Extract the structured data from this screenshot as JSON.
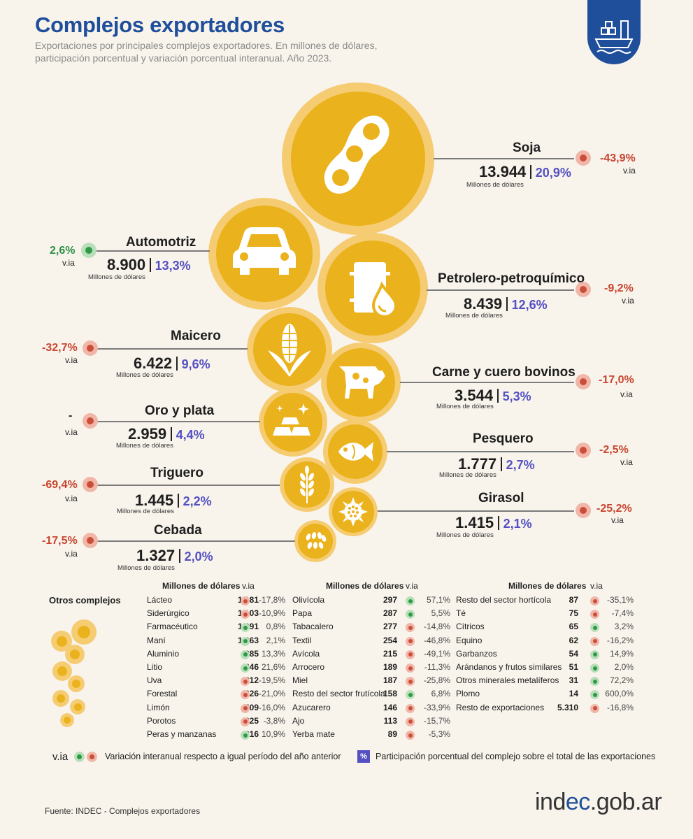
{
  "header": {
    "title": "Complejos exportadores",
    "subtitle": "Exportaciones por principales complejos exportadores. En millones de dólares, participación porcentual y variación porcentual interanual. Año 2023.",
    "badge_icon": "ship-icon"
  },
  "units_label": "Millones de dólares",
  "via_label": "v.ia",
  "main_complexes": [
    {
      "name": "Soja",
      "value": "13.944",
      "pct": "20,9%",
      "via": "-43,9%",
      "trend": "neg",
      "icon": "soybean-icon"
    },
    {
      "name": "Automotriz",
      "value": "8.900",
      "pct": "13,3%",
      "via": "2,6%",
      "trend": "pos",
      "icon": "car-icon"
    },
    {
      "name": "Petrolero-petroquímico",
      "value": "8.439",
      "pct": "12,6%",
      "via": "-9,2%",
      "trend": "neg",
      "icon": "oil-barrel-icon"
    },
    {
      "name": "Maicero",
      "value": "6.422",
      "pct": "9,6%",
      "via": "-32,7%",
      "trend": "neg",
      "icon": "corn-icon"
    },
    {
      "name": "Carne y cuero bovinos",
      "value": "3.544",
      "pct": "5,3%",
      "via": "-17,0%",
      "trend": "neg",
      "icon": "cow-icon"
    },
    {
      "name": "Oro y plata",
      "value": "2.959",
      "pct": "4,4%",
      "via": "-",
      "trend": "neg",
      "icon": "gold-bars-icon"
    },
    {
      "name": "Pesquero",
      "value": "1.777",
      "pct": "2,7%",
      "via": "-2,5%",
      "trend": "neg",
      "icon": "fish-icon"
    },
    {
      "name": "Triguero",
      "value": "1.445",
      "pct": "2,2%",
      "via": "-69,4%",
      "trend": "neg",
      "icon": "wheat-icon"
    },
    {
      "name": "Girasol",
      "value": "1.415",
      "pct": "2,1%",
      "via": "-25,2%",
      "trend": "neg",
      "icon": "sunflower-icon"
    },
    {
      "name": "Cebada",
      "value": "1.327",
      "pct": "2,0%",
      "via": "-17,5%",
      "trend": "neg",
      "icon": "barley-icon"
    }
  ],
  "otros": {
    "label": "Otros complejos",
    "col_header_value": "Millones de dólares",
    "col_header_via": "v.ia",
    "columns": [
      [
        {
          "name": "Lácteo",
          "value": "1.181",
          "via": "-17,8%",
          "trend": "neg"
        },
        {
          "name": "Siderúrgico",
          "value": "1.103",
          "via": "-10,9%",
          "trend": "neg"
        },
        {
          "name": "Farmacéutico",
          "value": "1.091",
          "via": "0,8%",
          "trend": "pos"
        },
        {
          "name": "Maní",
          "value": "1.063",
          "via": "2,1%",
          "trend": "pos"
        },
        {
          "name": "Aluminio",
          "value": "885",
          "via": "13,3%",
          "trend": "pos"
        },
        {
          "name": "Litio",
          "value": "846",
          "via": "21,6%",
          "trend": "pos"
        },
        {
          "name": "Uva",
          "value": "812",
          "via": "-19,5%",
          "trend": "neg"
        },
        {
          "name": "Forestal",
          "value": "626",
          "via": "-21,0%",
          "trend": "neg"
        },
        {
          "name": "Limón",
          "value": "409",
          "via": "-16,0%",
          "trend": "neg"
        },
        {
          "name": "Porotos",
          "value": "325",
          "via": "-3,8%",
          "trend": "neg"
        },
        {
          "name": "Peras y manzanas",
          "value": "316",
          "via": "10,9%",
          "trend": "pos"
        }
      ],
      [
        {
          "name": "Olivícola",
          "value": "297",
          "via": "57,1%",
          "trend": "pos"
        },
        {
          "name": "Papa",
          "value": "287",
          "via": "5,5%",
          "trend": "pos"
        },
        {
          "name": "Tabacalero",
          "value": "277",
          "via": "-14,8%",
          "trend": "neg"
        },
        {
          "name": "Textil",
          "value": "254",
          "via": "-46,8%",
          "trend": "neg"
        },
        {
          "name": "Avícola",
          "value": "215",
          "via": "-49,1%",
          "trend": "neg"
        },
        {
          "name": "Arrocero",
          "value": "189",
          "via": "-11,3%",
          "trend": "neg"
        },
        {
          "name": "Miel",
          "value": "187",
          "via": "-25,8%",
          "trend": "neg"
        },
        {
          "name": "Resto del sector frutícola",
          "value": "158",
          "via": "6,8%",
          "trend": "pos"
        },
        {
          "name": "Azucarero",
          "value": "146",
          "via": "-33,9%",
          "trend": "neg"
        },
        {
          "name": "Ajo",
          "value": "113",
          "via": "-15,7%",
          "trend": "neg"
        },
        {
          "name": "Yerba mate",
          "value": "89",
          "via": "-5,3%",
          "trend": "neg"
        }
      ],
      [
        {
          "name": "Resto del sector hortícola",
          "value": "87",
          "via": "-35,1%",
          "trend": "neg"
        },
        {
          "name": "Té",
          "value": "75",
          "via": "-7,4%",
          "trend": "neg"
        },
        {
          "name": "Cítricos",
          "value": "65",
          "via": "3,2%",
          "trend": "pos"
        },
        {
          "name": "Equino",
          "value": "62",
          "via": "-16,2%",
          "trend": "neg"
        },
        {
          "name": "Garbanzos",
          "value": "54",
          "via": "14,9%",
          "trend": "pos"
        },
        {
          "name": "Arándanos y frutos similares",
          "value": "51",
          "via": "2,0%",
          "trend": "pos"
        },
        {
          "name": "Otros minerales metalíferos",
          "value": "31",
          "via": "72,2%",
          "trend": "pos"
        },
        {
          "name": "Plomo",
          "value": "14",
          "via": "600,0%",
          "trend": "pos"
        },
        {
          "name": "Resto de exportaciones",
          "value": "5.310",
          "via": "-16,8%",
          "trend": "neg"
        }
      ]
    ]
  },
  "legend": {
    "via": "v.ia",
    "via_text": "Variación interanual respecto a igual período del año anterior",
    "pct_symbol": "%",
    "pct_text": "Participación porcentual del complejo sobre el total de las exportaciones"
  },
  "footer": {
    "source": "Fuente: INDEC - Complejos exportadores",
    "site_prefix": "ind",
    "site_highlight": "ec",
    "site_suffix": ".gob.ar"
  },
  "colors": {
    "title": "#1f4e9a",
    "circle_outer": "#f6cc73",
    "circle_inner": "#eab21c",
    "percent": "#5450c2",
    "negative": "#cc4d3a",
    "positive": "#2f9a45"
  }
}
